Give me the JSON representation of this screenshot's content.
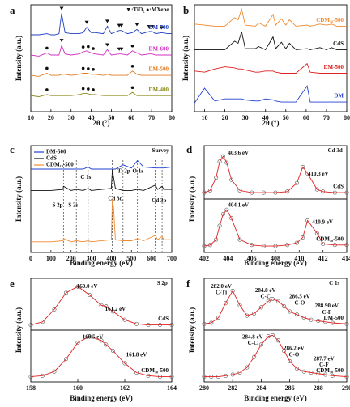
{
  "chart_data": [
    {
      "panel": "a",
      "type": "line",
      "xlabel": "2θ (°)",
      "ylabel": "Intensity (a.u.)",
      "xlim": [
        10,
        80
      ],
      "xticks": [
        10,
        20,
        30,
        40,
        50,
        60,
        70,
        80
      ],
      "ylim": [
        0,
        100
      ],
      "legend": "curve-end",
      "x": [
        10,
        14,
        18,
        20,
        22,
        24,
        25.3,
        27,
        30,
        34,
        36,
        37.8,
        40,
        42,
        46,
        48,
        50,
        53.9,
        55,
        58,
        60.5,
        62.7,
        65,
        68.8,
        70.3,
        72,
        75,
        78,
        80
      ],
      "series": [
        {
          "name": "DM-700",
          "color": "#2040c0",
          "values": [
            72,
            72,
            73,
            72,
            72,
            73,
            92,
            74,
            73,
            73,
            74,
            79,
            74,
            74,
            73,
            80,
            73,
            76,
            76,
            73,
            74,
            77,
            73,
            75,
            75,
            73,
            74,
            73,
            73
          ],
          "tio2_peaks": [
            25.3,
            37.8,
            48,
            53.9,
            55,
            62.7,
            68.8,
            70.3,
            75
          ]
        },
        {
          "name": "DM-600",
          "color": "#d030c0",
          "values": [
            53,
            52,
            55,
            53,
            53,
            53,
            62,
            54,
            53,
            54,
            56,
            57,
            55,
            54,
            53,
            58,
            53,
            54,
            54,
            53,
            57,
            55,
            53,
            54,
            54,
            53,
            53,
            53,
            53
          ],
          "tio2_peaks": [
            25.3,
            48,
            53.9,
            55
          ],
          "mxene_peaks": [
            18,
            36,
            38.5,
            41,
            60.5
          ]
        },
        {
          "name": "DM-500",
          "color": "#e07a20",
          "values": [
            34,
            33,
            36,
            34,
            34,
            34,
            35,
            35,
            34,
            35,
            36,
            36,
            35,
            35,
            34,
            35,
            34,
            34,
            34,
            34,
            38,
            35,
            34,
            34,
            34,
            34,
            34,
            34,
            34
          ],
          "mxene_peaks": [
            18,
            36,
            38.5,
            41,
            60.5
          ]
        },
        {
          "name": "DM-400",
          "color": "#8a8a1a",
          "values": [
            15,
            14,
            16,
            15,
            15,
            15,
            15,
            15,
            15,
            16,
            17,
            17,
            16,
            16,
            15,
            15,
            15,
            15,
            15,
            15,
            18,
            15,
            15,
            15,
            15,
            15,
            15,
            15,
            15
          ],
          "mxene_peaks": [
            18,
            36,
            38.5,
            41,
            60.5
          ]
        }
      ],
      "annotations": [
        "▼:TiO₂  ●:MXene"
      ]
    },
    {
      "panel": "b",
      "type": "line",
      "xlabel": "2θ (°)",
      "ylabel": "Intensity (a.u.)",
      "xlim": [
        5,
        80
      ],
      "xticks": [
        10,
        20,
        30,
        40,
        50,
        60,
        70,
        80
      ],
      "ylim": [
        0,
        100
      ],
      "legend": "curve-end",
      "x": [
        5,
        10,
        15,
        20,
        24.8,
        26.5,
        28.2,
        30,
        35,
        36.6,
        40,
        43.7,
        45,
        47.8,
        50,
        51.8,
        55,
        60.5,
        62,
        66.8,
        70,
        72.6,
        75,
        80
      ],
      "series": [
        {
          "name": "CDM₁₀-500",
          "color": "#f08a30",
          "values": [
            82,
            81,
            80,
            80,
            88,
            86,
            96,
            81,
            80,
            83,
            80,
            91,
            81,
            87,
            81,
            86,
            80,
            81,
            80,
            82,
            81,
            82,
            80,
            80
          ]
        },
        {
          "name": "CdS",
          "color": "#111111",
          "values": [
            58,
            58,
            58,
            58,
            66,
            64,
            75,
            59,
            59,
            61,
            58,
            70,
            59,
            65,
            59,
            64,
            58,
            59,
            58,
            60,
            58,
            60,
            58,
            58
          ]
        },
        {
          "name": "DM-500",
          "color": "#e02020",
          "values": [
            38,
            37,
            40,
            42,
            41,
            40,
            40,
            39,
            37,
            37,
            38,
            38,
            37,
            36,
            36,
            36,
            36,
            45,
            37,
            36,
            36,
            36,
            36,
            36
          ]
        },
        {
          "name": "DM",
          "color": "#2040d0",
          "values": [
            8,
            22,
            10,
            12,
            12,
            12,
            12,
            11,
            10,
            10,
            12,
            11,
            10,
            9,
            9,
            9,
            9,
            24,
            9,
            9,
            9,
            9,
            9,
            9
          ]
        }
      ],
      "annotations": []
    },
    {
      "panel": "c",
      "type": "line",
      "xlabel": "Binding energy (eV)",
      "ylabel": "Intensity (a.u.)",
      "xlim": [
        0,
        700
      ],
      "xticks": [
        0,
        100,
        200,
        300,
        400,
        500,
        600,
        700
      ],
      "ylim": [
        0,
        100
      ],
      "legend": "upper left",
      "x": [
        0,
        100,
        160,
        162,
        200,
        226,
        260,
        285,
        300,
        400,
        405,
        411,
        420,
        458,
        500,
        530,
        560,
        618,
        630,
        652,
        660,
        700
      ],
      "series": [
        {
          "name": "DM-500",
          "color": "#2040d0",
          "values": [
            78,
            78,
            78,
            78,
            78,
            78,
            78,
            80,
            78,
            78,
            78,
            78,
            78,
            82,
            79,
            86,
            80,
            79,
            79,
            79,
            79,
            80
          ]
        },
        {
          "name": "CdS",
          "color": "#111111",
          "values": [
            58,
            58,
            59,
            62,
            58,
            59,
            58,
            60,
            58,
            60,
            78,
            70,
            60,
            58,
            58,
            59,
            58,
            63,
            59,
            62,
            59,
            59
          ]
        },
        {
          "name": "CDM₁₀-500",
          "color": "#f08a30",
          "values": [
            10,
            10,
            11,
            13,
            10,
            11,
            10,
            11,
            10,
            12,
            50,
            42,
            12,
            11,
            11,
            13,
            11,
            16,
            12,
            15,
            12,
            12
          ]
        }
      ],
      "peak_lines": [
        162,
        226,
        285,
        405,
        458,
        530,
        618,
        652
      ],
      "annotations": [
        "Survey",
        "S 2p",
        "S 2s",
        "C 1s",
        "Cd 3d",
        "Ti 2p",
        "O 1s",
        "Cd 3p"
      ]
    },
    {
      "panel": "d",
      "type": "line",
      "xlabel": "Binding energy (eV)",
      "ylabel": "Intensity (a.u.)",
      "xlim": [
        402,
        414
      ],
      "xticks": [
        402,
        404,
        406,
        408,
        410,
        412,
        414
      ],
      "ylim": [
        0,
        100
      ],
      "legend": "curve-end",
      "subplots": 2,
      "marker": "open-circle",
      "x": [
        402,
        402.5,
        403,
        403.3,
        403.6,
        403.9,
        404.3,
        405,
        406,
        407,
        408,
        409,
        409.8,
        410.3,
        410.7,
        411.5,
        412,
        413,
        414
      ],
      "series": [
        {
          "name": "CdS",
          "color": "#e02020",
          "values": [
            56,
            58,
            70,
            85,
            90,
            84,
            68,
            58,
            56,
            56,
            56,
            57,
            65,
            80,
            74,
            59,
            57,
            56,
            56
          ]
        },
        {
          "name": "CDM₁₀-500",
          "color": "#e02020",
          "values": [
            6,
            7,
            12,
            25,
            36,
            40,
            32,
            12,
            7,
            6,
            6,
            7,
            9,
            14,
            30,
            18,
            8,
            7,
            7
          ]
        }
      ],
      "annotations": [
        "Cd 3d",
        "403.6 eV",
        "410.3 eV",
        "404.1 eV",
        "410.9 eV"
      ]
    },
    {
      "panel": "e",
      "type": "line",
      "xlabel": "Binding energy (eV)",
      "ylabel": "Intensity (a.u.)",
      "xlim": [
        158,
        164
      ],
      "xticks": [
        158,
        160,
        162,
        164
      ],
      "ylim": [
        0,
        100
      ],
      "legend": "curve-end",
      "subplots": 2,
      "marker": "open-circle",
      "x": [
        158,
        158.5,
        159,
        159.5,
        160,
        160.5,
        161,
        161.2,
        161.5,
        162,
        162.5,
        163,
        163.5,
        164
      ],
      "series": [
        {
          "name": "CdS",
          "color": "#e02020",
          "values": [
            55,
            58,
            70,
            86,
            92,
            84,
            74,
            73,
            68,
            60,
            56,
            55,
            55,
            55
          ]
        },
        {
          "name": "CDM₁₀-500",
          "color": "#e02020",
          "values": [
            5,
            6,
            10,
            22,
            38,
            44,
            40,
            36,
            30,
            18,
            9,
            6,
            5,
            5
          ]
        }
      ],
      "annotations": [
        "S 2p",
        "160.0 eV",
        "161.2 eV",
        "160.5 eV",
        "161.8 eV"
      ]
    },
    {
      "panel": "f",
      "type": "line",
      "xlabel": "Binding energy (eV)",
      "ylabel": "Intensity (a.u.)",
      "xlim": [
        280,
        290
      ],
      "xticks": [
        280,
        282,
        284,
        286,
        288,
        290
      ],
      "ylim": [
        0,
        100
      ],
      "legend": "curve-end",
      "subplots": 2,
      "marker": "open-circle",
      "x": [
        280,
        280.5,
        281,
        281.5,
        282,
        282.5,
        283,
        283.5,
        284,
        284.5,
        284.8,
        285.2,
        285.6,
        286,
        286.5,
        287,
        287.5,
        288,
        288.5,
        289,
        290
      ],
      "series": [
        {
          "name": "DM-500",
          "color": "#e02020",
          "values": [
            56,
            57,
            62,
            76,
            88,
            74,
            64,
            66,
            72,
            78,
            80,
            78,
            73,
            68,
            65,
            62,
            60,
            59,
            58,
            57,
            56
          ]
        },
        {
          "name": "CDM₁₀-500",
          "color": "#e02020",
          "values": [
            5,
            5,
            5,
            6,
            7,
            9,
            14,
            24,
            36,
            44,
            45,
            40,
            30,
            20,
            13,
            10,
            9,
            8,
            7,
            6,
            5
          ]
        }
      ],
      "annotations": [
        "C 1s",
        "282.0 eV",
        "C-Ti",
        "284.8 eV",
        "C-C",
        "286.5 eV",
        "C-O",
        "288.90 eV",
        "C-F",
        "284.8 eV",
        "C-C",
        "286.2 eV",
        "C-O",
        "287.7 eV",
        "C-F"
      ]
    }
  ]
}
